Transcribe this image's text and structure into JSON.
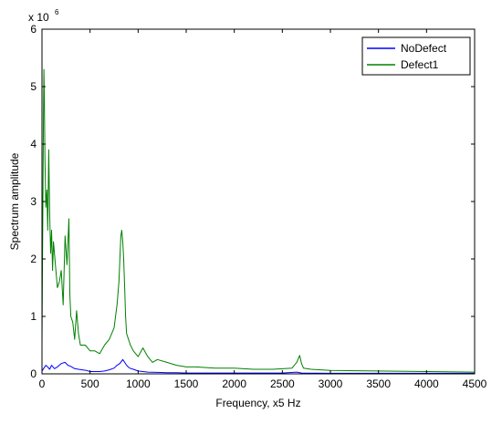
{
  "chart_data": {
    "type": "line",
    "title": "",
    "xlabel": "Frequency, x5 Hz",
    "ylabel": "Spectrum amplitude",
    "xlim": [
      0,
      4500
    ],
    "ylim": [
      0,
      6000000
    ],
    "y_exponent_label": "x 10",
    "y_exponent_power": "6",
    "x_ticks": [
      0,
      500,
      1000,
      1500,
      2000,
      2500,
      3000,
      3500,
      4000,
      4500
    ],
    "x_tick_labels": [
      "0",
      "500",
      "1000",
      "1500",
      "2000",
      "2500",
      "3000",
      "3500",
      "4000",
      "4500"
    ],
    "y_ticks": [
      0,
      1000000,
      2000000,
      3000000,
      4000000,
      5000000,
      6000000
    ],
    "y_tick_labels": [
      "0",
      "1",
      "2",
      "3",
      "4",
      "5",
      "6"
    ],
    "grid": false,
    "legend_position": "top-right",
    "series": [
      {
        "name": "NoDefect",
        "color": "#0000ff",
        "x": [
          0,
          20,
          40,
          60,
          80,
          100,
          130,
          160,
          200,
          240,
          270,
          300,
          340,
          380,
          420,
          460,
          500,
          550,
          600,
          650,
          700,
          750,
          780,
          810,
          840,
          860,
          880,
          910,
          950,
          1000,
          1050,
          1100,
          1200,
          1300,
          1400,
          1500,
          1700,
          2000,
          2300,
          2500,
          2650,
          2700,
          3000,
          3500,
          4000,
          4500
        ],
        "y": [
          50000,
          100000,
          150000,
          120000,
          80000,
          150000,
          90000,
          120000,
          180000,
          200000,
          150000,
          130000,
          90000,
          80000,
          70000,
          60000,
          40000,
          40000,
          40000,
          50000,
          70000,
          100000,
          150000,
          180000,
          250000,
          200000,
          150000,
          100000,
          80000,
          50000,
          40000,
          30000,
          25000,
          20000,
          20000,
          15000,
          15000,
          15000,
          15000,
          15000,
          30000,
          15000,
          10000,
          10000,
          10000,
          10000
        ]
      },
      {
        "name": "Defect1",
        "color": "#008000",
        "x": [
          0,
          5,
          10,
          15,
          20,
          25,
          30,
          40,
          50,
          60,
          70,
          80,
          90,
          100,
          110,
          120,
          140,
          160,
          180,
          200,
          220,
          240,
          260,
          280,
          290,
          300,
          320,
          340,
          360,
          380,
          400,
          450,
          500,
          550,
          600,
          650,
          700,
          750,
          780,
          800,
          820,
          830,
          840,
          850,
          860,
          870,
          880,
          900,
          920,
          950,
          1000,
          1050,
          1100,
          1150,
          1200,
          1300,
          1400,
          1500,
          1600,
          1800,
          2000,
          2200,
          2400,
          2600,
          2650,
          2680,
          2700,
          2720,
          2800,
          3000,
          3500,
          4000,
          4500
        ],
        "y": [
          500000,
          1800000,
          3200000,
          4500000,
          5300000,
          4800000,
          3800000,
          2900000,
          3200000,
          2500000,
          3900000,
          2800000,
          2100000,
          2500000,
          1800000,
          2300000,
          1900000,
          1500000,
          1600000,
          1800000,
          1200000,
          2400000,
          1900000,
          2700000,
          1400000,
          1000000,
          900000,
          600000,
          1100000,
          700000,
          500000,
          500000,
          400000,
          400000,
          350000,
          500000,
          600000,
          800000,
          1200000,
          1600000,
          2400000,
          2500000,
          2300000,
          2000000,
          1500000,
          1000000,
          700000,
          600000,
          500000,
          400000,
          300000,
          450000,
          300000,
          200000,
          250000,
          200000,
          150000,
          120000,
          120000,
          100000,
          100000,
          80000,
          80000,
          100000,
          200000,
          320000,
          180000,
          100000,
          80000,
          60000,
          50000,
          40000,
          30000
        ]
      }
    ]
  }
}
